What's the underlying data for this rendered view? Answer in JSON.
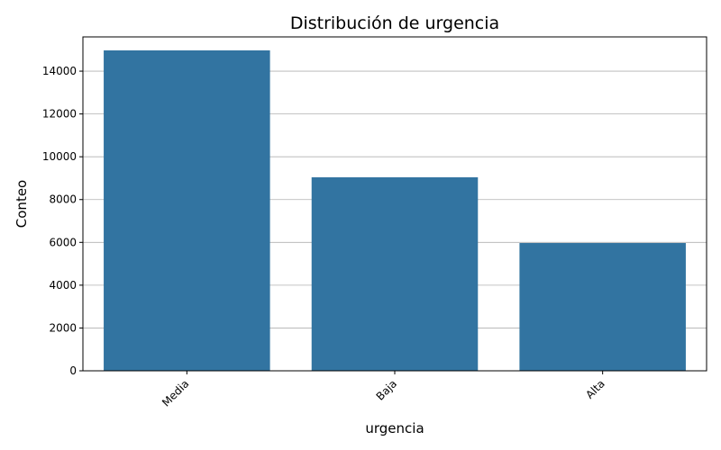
{
  "chart_data": {
    "type": "bar",
    "title": "Distribución de urgencia",
    "xlabel": "urgencia",
    "ylabel": "Conteo",
    "categories": [
      "Media",
      "Baja",
      "Alta"
    ],
    "values": [
      14970,
      9040,
      5970
    ],
    "ylim": [
      0,
      15600
    ],
    "yticks": [
      0,
      2000,
      4000,
      6000,
      8000,
      10000,
      12000,
      14000
    ],
    "grid": "horizontal",
    "bar_color": "#3274a1",
    "grid_color": "#b0b0b0"
  }
}
